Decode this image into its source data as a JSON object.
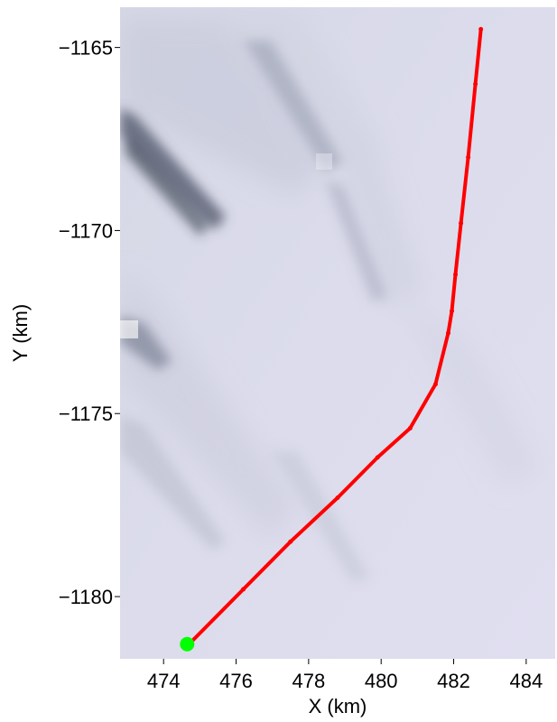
{
  "chart_data": {
    "type": "line",
    "title": "",
    "xlabel": "X (km)",
    "ylabel": "Y (km)",
    "xlim": [
      472.8,
      484.8
    ],
    "ylim": [
      -1181.7,
      -1163.9
    ],
    "grid": false,
    "background": "satellite imagery of ice surface (pale blue-grey with darker diagonal streaks)",
    "x_ticks": [
      474,
      476,
      478,
      480,
      482,
      484
    ],
    "x_tick_labels": [
      "474",
      "476",
      "478",
      "480",
      "482",
      "484"
    ],
    "y_ticks": [
      -1165,
      -1170,
      -1175,
      -1180
    ],
    "y_tick_labels": [
      "−1165",
      "−1170",
      "−1175",
      "−1180"
    ],
    "series": [
      {
        "color": "#ff0000",
        "x": [
          482.75,
          482.6,
          482.4,
          482.2,
          482.05,
          481.95,
          481.85,
          481.5,
          480.8,
          479.9,
          478.8,
          477.5,
          476.2,
          474.7
        ],
        "y": [
          -1164.5,
          -1166.0,
          -1168.0,
          -1169.8,
          -1171.2,
          -1172.2,
          -1172.8,
          -1174.2,
          -1175.4,
          -1176.2,
          -1177.3,
          -1178.5,
          -1179.8,
          -1181.3
        ]
      }
    ],
    "markers": [
      {
        "color": "#00ff00",
        "x": 474.65,
        "y": -1181.3
      }
    ]
  }
}
